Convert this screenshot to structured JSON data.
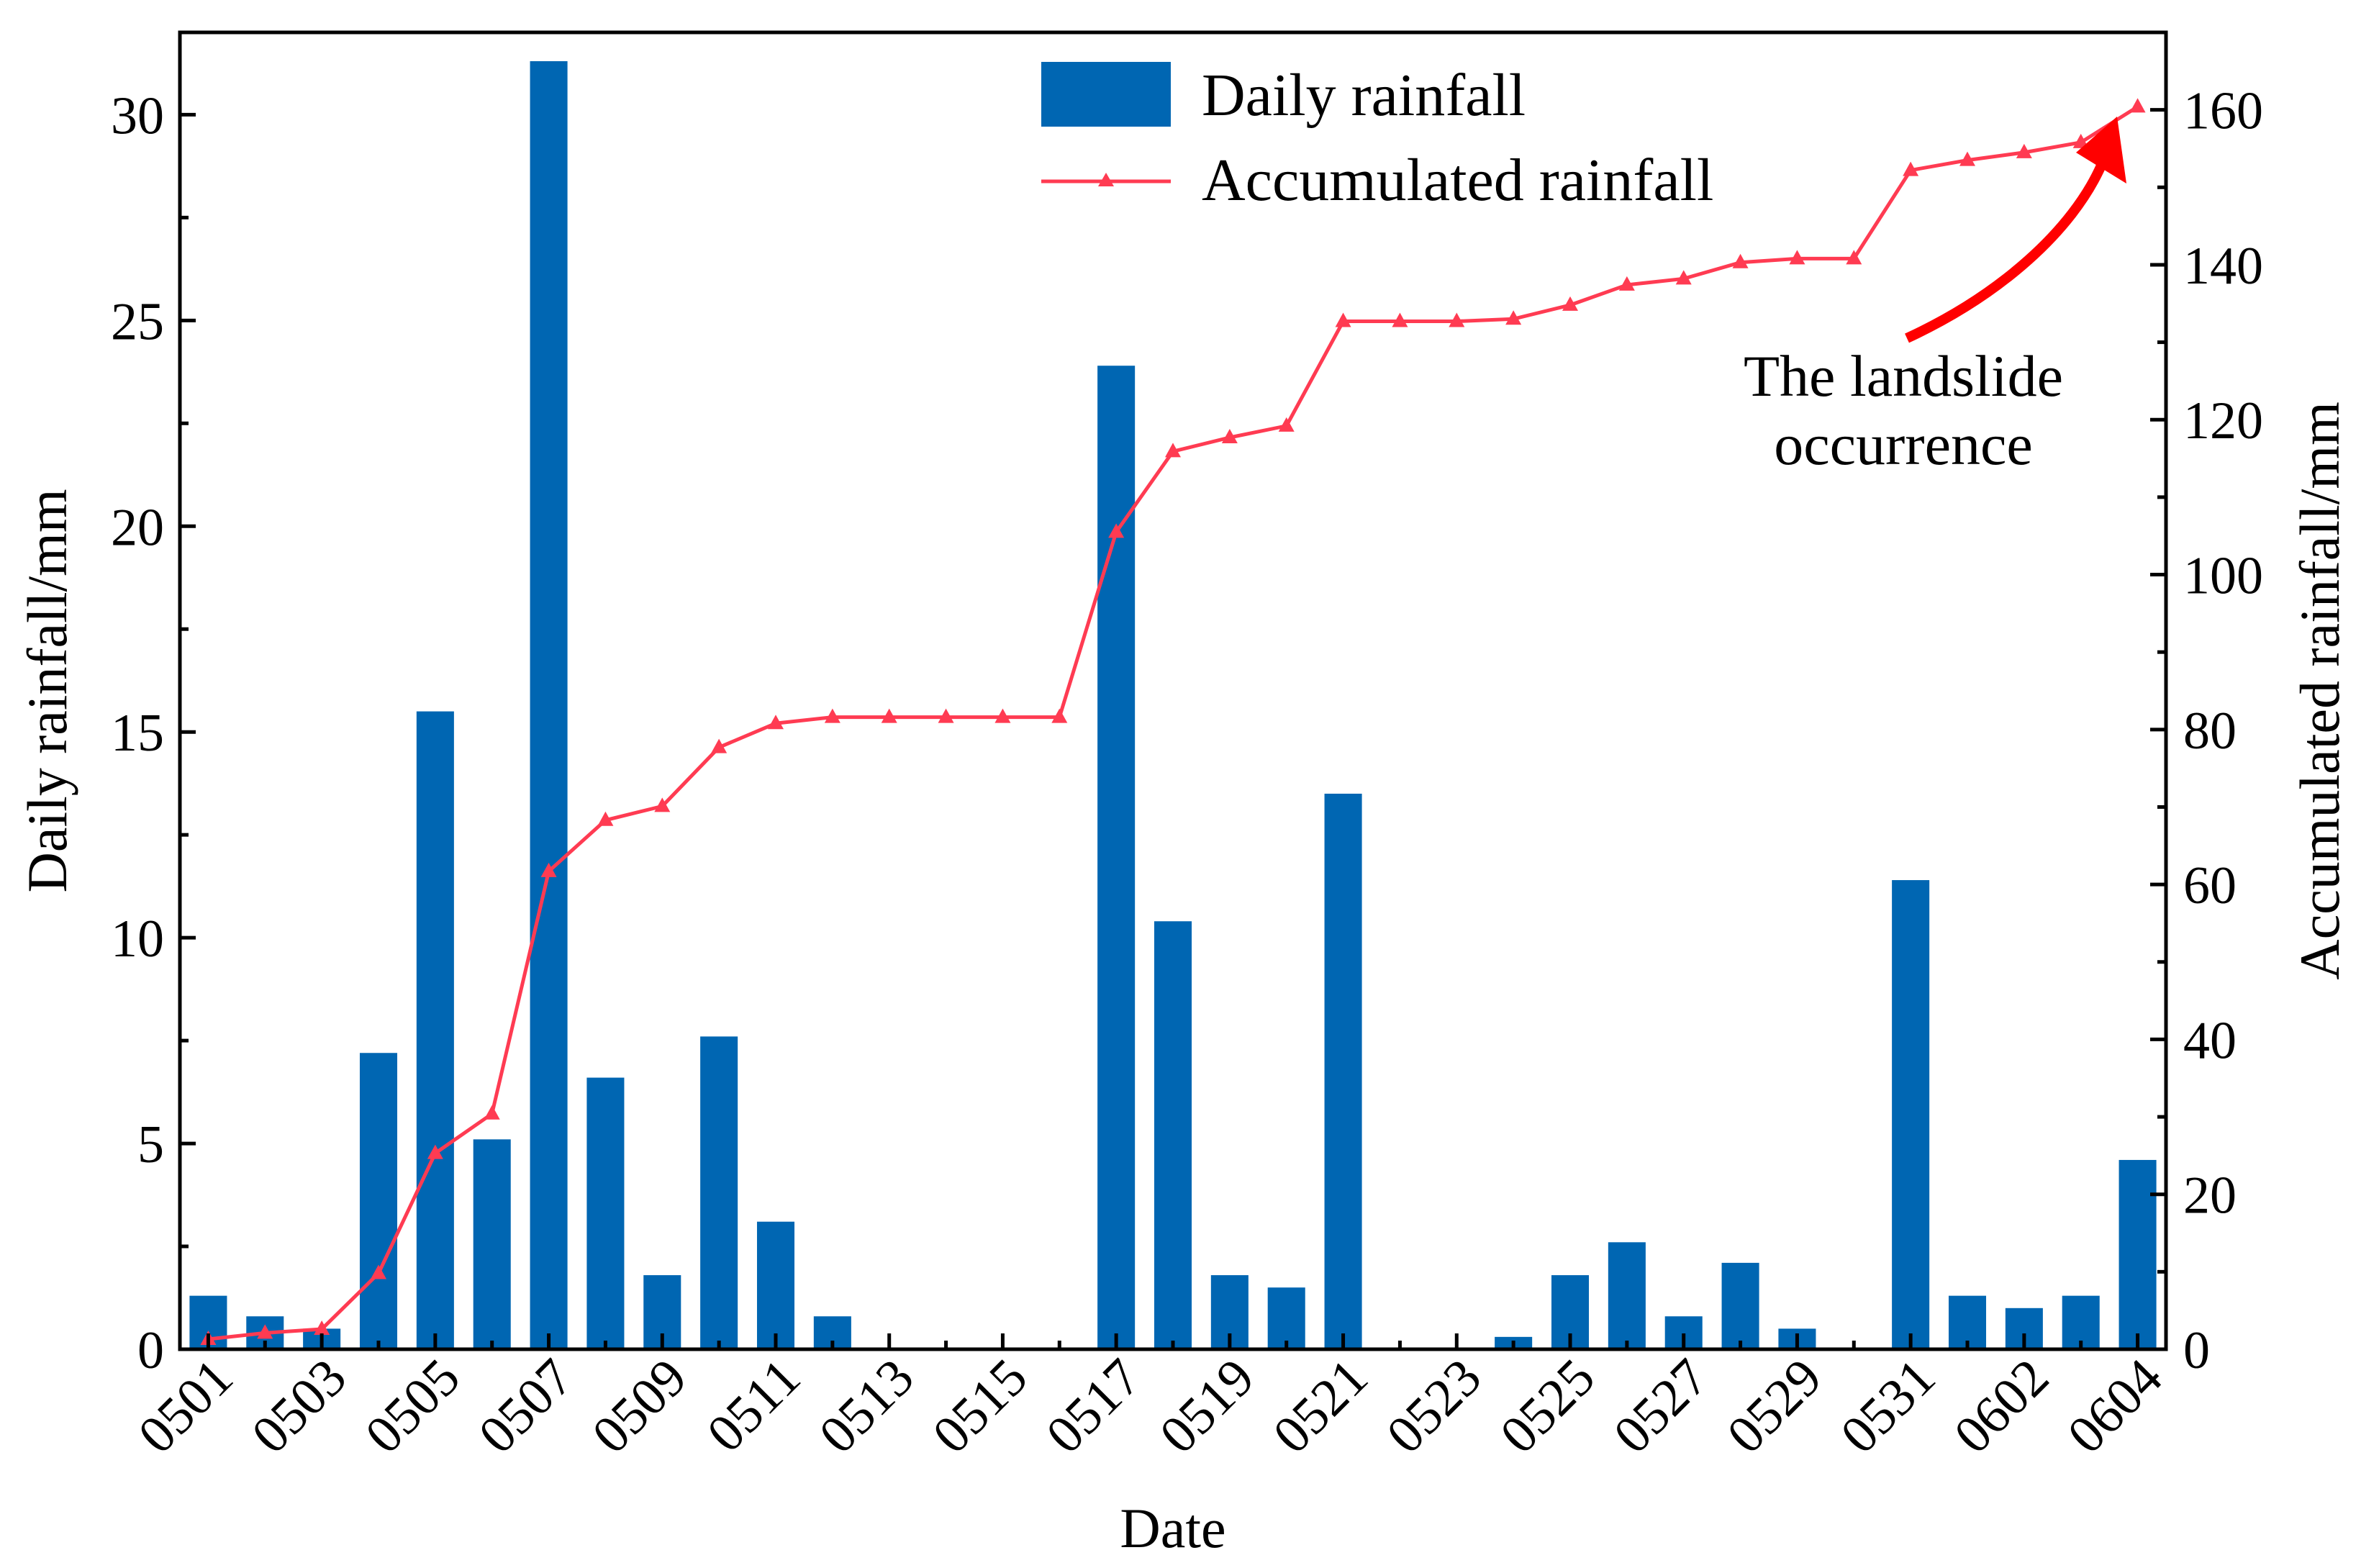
{
  "chart_data": {
    "type": "bar+line",
    "categories": [
      "0501",
      "0502",
      "0503",
      "0504",
      "0505",
      "0506",
      "0507",
      "0508",
      "0509",
      "0510",
      "0511",
      "0512",
      "0513",
      "0514",
      "0515",
      "0516",
      "0517",
      "0518",
      "0519",
      "0520",
      "0521",
      "0522",
      "0523",
      "0524",
      "0525",
      "0526",
      "0527",
      "0528",
      "0529",
      "0530",
      "0531",
      "0601",
      "0602",
      "0603",
      "0604"
    ],
    "x_tick_labels": [
      "0501",
      "0503",
      "0505",
      "0507",
      "0509",
      "0511",
      "0513",
      "0515",
      "0517",
      "0519",
      "0521",
      "0523",
      "0525",
      "0527",
      "0529",
      "0531",
      "0602",
      "0604"
    ],
    "series": [
      {
        "name": "Daily rainfall",
        "type": "bar",
        "axis": "left",
        "color": "#0066b2",
        "values": [
          1.3,
          0.8,
          0.5,
          7.2,
          15.5,
          5.1,
          31.3,
          6.6,
          1.8,
          7.6,
          3.1,
          0.8,
          0,
          0,
          0,
          0,
          23.9,
          10.4,
          1.8,
          1.5,
          13.5,
          0,
          0,
          0.3,
          1.8,
          2.6,
          0.8,
          2.1,
          0.5,
          0,
          11.4,
          1.3,
          1.0,
          1.3,
          4.6
        ]
      },
      {
        "name": "Accumulated rainfall",
        "type": "line",
        "axis": "right",
        "color": "#ff3b52",
        "marker": "triangle",
        "values": [
          1.3,
          2.1,
          2.6,
          9.8,
          25.3,
          30.4,
          61.7,
          68.3,
          70.1,
          77.7,
          80.8,
          81.6,
          81.6,
          81.6,
          81.6,
          81.6,
          105.5,
          115.9,
          117.7,
          119.2,
          132.7,
          132.7,
          132.7,
          133.0,
          134.8,
          137.4,
          138.2,
          140.3,
          140.8,
          140.8,
          152.2,
          153.5,
          154.5,
          155.8,
          160.4
        ]
      }
    ],
    "xlabel": "Date",
    "ylabel": "Daily rainfall/mm",
    "y2label": "Accumulated rainfall/mm",
    "ylim": [
      0,
      32
    ],
    "y2lim": [
      0,
      170
    ],
    "yticks": [
      0,
      5,
      10,
      15,
      20,
      25,
      30
    ],
    "y2ticks": [
      0,
      20,
      40,
      60,
      80,
      100,
      120,
      140,
      160
    ],
    "legend": [
      "Daily rainfall",
      "Accumulated rainfall"
    ],
    "legend_position": "top-center",
    "annotation": {
      "lines": [
        "The landslide",
        "occurrence"
      ],
      "target": "0604",
      "color": "#ff0000"
    }
  }
}
